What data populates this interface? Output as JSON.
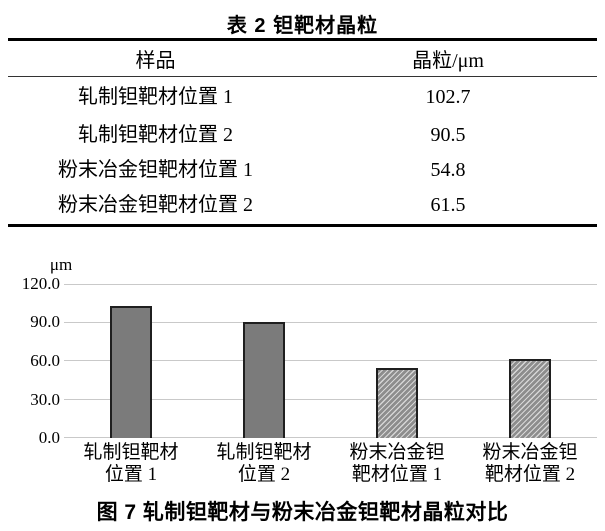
{
  "table": {
    "title": "表 2  钽靶材晶粒",
    "headers": {
      "sample": "样品",
      "grain": "晶粒/μm"
    },
    "rows": [
      {
        "sample": "轧制钽靶材位置 1",
        "grain": "102.7"
      },
      {
        "sample": "轧制钽靶材位置 2",
        "grain": "90.5"
      },
      {
        "sample": "粉末冶金钽靶材位置 1",
        "grain": "54.8"
      },
      {
        "sample": "粉末冶金钽靶材位置 2",
        "grain": "61.5"
      }
    ]
  },
  "chart_data": {
    "type": "bar",
    "title": "图 7  轧制钽靶材与粉末冶金钽靶材晶粒对比",
    "xlabel": "",
    "ylabel": "μm",
    "ylim": [
      0,
      120
    ],
    "yticks": [
      0,
      30,
      60,
      90,
      120
    ],
    "ytick_labels": [
      "0.0",
      "30.0",
      "60.0",
      "90.0",
      "120.0"
    ],
    "categories": [
      "轧制钽靶材位置 1",
      "轧制钽靶材位置 2",
      "粉末冶金钽靶材位置 1",
      "粉末冶金钽靶材位置 2"
    ],
    "category_labels": [
      [
        "轧制钽靶材",
        "位置 1"
      ],
      [
        "轧制钽靶材",
        "位置 2"
      ],
      [
        "粉末冶金钽",
        "靶材位置 1"
      ],
      [
        "粉末冶金钽",
        "靶材位置 2"
      ]
    ],
    "values": [
      102.7,
      90.5,
      54.8,
      61.5
    ],
    "grid": true,
    "legend": "none",
    "bar_styles": [
      "solid",
      "solid",
      "hatched",
      "hatched"
    ],
    "colors": {
      "bar_solid": "#7b7b7b",
      "bar_border": "#1f1f1f",
      "hatch_dark": "#8d8d8d",
      "hatch_light": "#d6d6d6",
      "gridline": "#c9c9c9",
      "text": "#000000",
      "background": "#ffffff"
    }
  }
}
